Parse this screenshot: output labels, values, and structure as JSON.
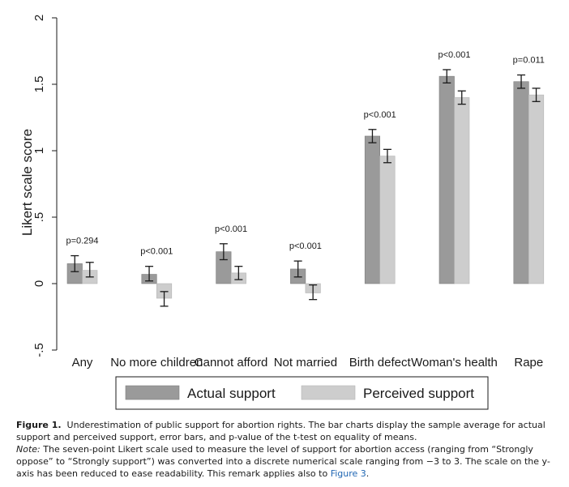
{
  "chart_data": {
    "type": "bar",
    "ylabel": "Likert scale score",
    "ylim": [
      -0.5,
      2
    ],
    "yticks": [
      -0.5,
      0,
      0.5,
      1,
      1.5,
      2
    ],
    "ytick_labels": [
      "-.5",
      "0",
      ".5",
      "1",
      "1.5",
      "2"
    ],
    "grid": false,
    "legend_position": "bottom",
    "categories": [
      "Any",
      "No more children",
      "Cannot afford",
      "Not married",
      "Birth defect",
      "Woman's health",
      "Rape"
    ],
    "series": [
      {
        "name": "Actual support",
        "color": "#9a9a9a",
        "values": [
          0.15,
          0.07,
          0.24,
          0.11,
          1.11,
          1.56,
          1.52
        ],
        "error_low": [
          0.09,
          0.02,
          0.18,
          0.05,
          1.06,
          1.51,
          1.47
        ],
        "error_high": [
          0.21,
          0.13,
          0.3,
          0.17,
          1.16,
          1.61,
          1.57
        ]
      },
      {
        "name": "Perceived support",
        "color": "#cdcdcd",
        "values": [
          0.1,
          -0.11,
          0.08,
          -0.07,
          0.96,
          1.4,
          1.42
        ],
        "error_low": [
          0.05,
          -0.17,
          0.03,
          -0.12,
          0.91,
          1.35,
          1.37
        ],
        "error_high": [
          0.16,
          -0.06,
          0.13,
          -0.01,
          1.01,
          1.45,
          1.47
        ]
      }
    ],
    "annotations": [
      "p=0.294",
      "p<0.001",
      "p<0.001",
      "p<0.001",
      "p<0.001",
      "p<0.001",
      "p=0.011"
    ]
  },
  "caption": {
    "label": "Figure 1.",
    "text": "Underestimation of public support for abortion rights. The bar charts display the sample average for actual support and perceived support, error bars, and p-value of the t-test on equality of means.",
    "note_label": "Note:",
    "note_text": "The seven-point Likert scale used to measure the level of support for abortion access (ranging from “Strongly oppose” to “Strongly support”) was converted into a discrete numerical scale ranging from −3 to 3. The scale on the y-axis has been reduced to ease readability. This remark applies also to",
    "link_text": "Figure 3",
    "end_text": "."
  }
}
